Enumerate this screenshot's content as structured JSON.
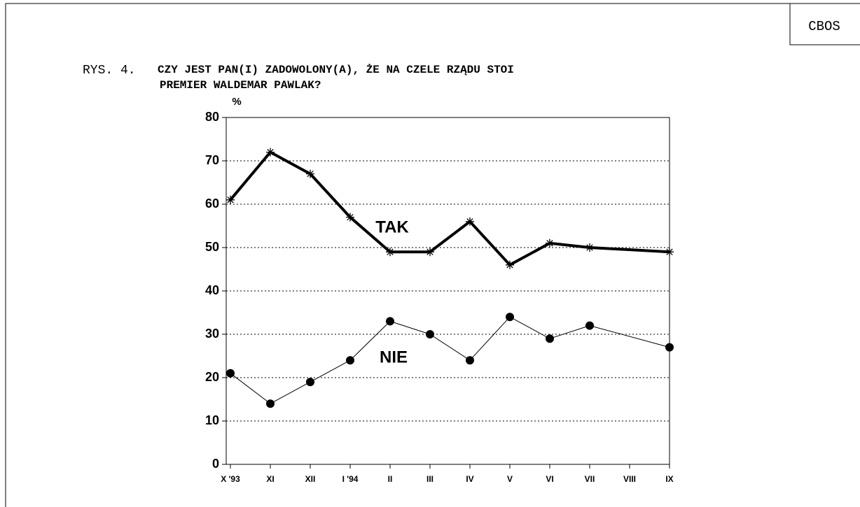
{
  "chart_data": {
    "type": "line",
    "corner_label": "CBOS",
    "figure_label": "RYS. 4.",
    "title": [
      "CZY JEST PAN(I) ZADOWOLONY(A), ŻE NA CZELE RZĄDU STOI",
      "PREMIER WALDEMAR PAWLAK?"
    ],
    "y_label": "%",
    "categories": [
      "X '93",
      "XI",
      "XII",
      "I '94",
      "II",
      "III",
      "IV",
      "V",
      "VI",
      "VII",
      "VIII",
      "IX"
    ],
    "series": [
      {
        "name": "TAK",
        "color": "#000000",
        "marker": "asterisk",
        "values": [
          61,
          72,
          67,
          57,
          49,
          49,
          56,
          46,
          51,
          50,
          null,
          49
        ]
      },
      {
        "name": "NIE",
        "color": "#000000",
        "marker": "circle",
        "values": [
          21,
          14,
          19,
          24,
          33,
          30,
          24,
          34,
          29,
          32,
          null,
          27
        ]
      }
    ],
    "ylim": [
      0,
      80
    ],
    "yticks": [
      0,
      10,
      20,
      30,
      40,
      50,
      60,
      70,
      80
    ],
    "grid": true
  }
}
